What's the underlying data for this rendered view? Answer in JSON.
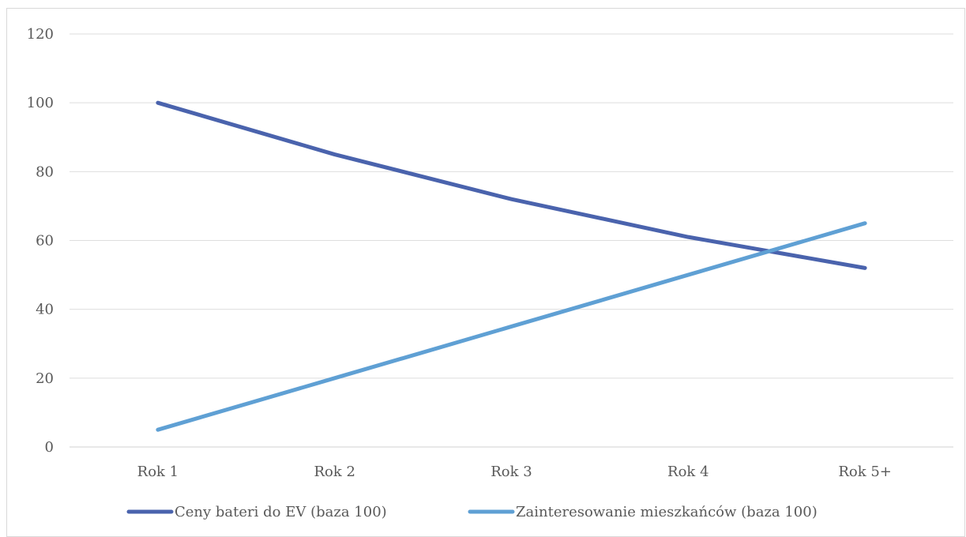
{
  "chart_data": {
    "type": "line",
    "categories": [
      "Rok 1",
      "Rok 2",
      "Rok 3",
      "Rok 4",
      "Rok 5+"
    ],
    "series": [
      {
        "name": "Ceny bateri do EV (baza 100)",
        "values": [
          100,
          85,
          72,
          61,
          52
        ],
        "color": "#4a63ad"
      },
      {
        "name": "Zainteresowanie mieszkańców (baza 100)",
        "values": [
          5,
          20,
          35,
          50,
          65
        ],
        "color": "#5fa0d4"
      }
    ],
    "y_ticks": [
      "0",
      "20",
      "40",
      "60",
      "80",
      "100",
      "120"
    ],
    "ylim": [
      0,
      120
    ],
    "grid": true,
    "legend_position": "bottom",
    "title": "",
    "xlabel": "",
    "ylabel": ""
  }
}
